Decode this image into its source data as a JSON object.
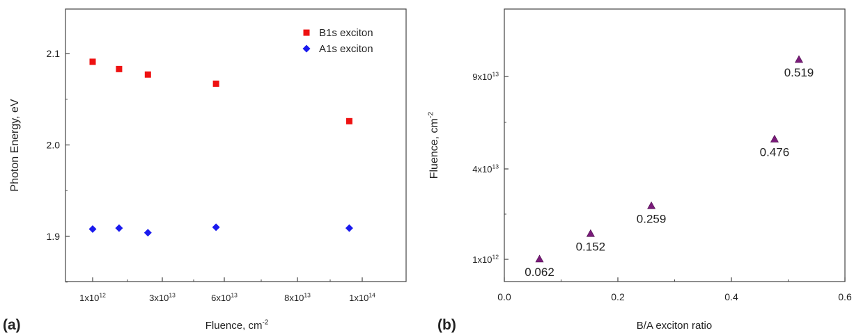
{
  "colors": {
    "b1s": "#ee1111",
    "a1s": "#1a1aee",
    "ratio": "#7a1a7a",
    "axis": "#444444",
    "text": "#222222"
  },
  "chart_data": [
    {
      "panel_label": "(a)",
      "type": "scatter",
      "xlabel": "Fluence, cm",
      "xlabel_sup": "-2",
      "ylabel": "Photon Energy, eV",
      "ylim": [
        1.84,
        2.15
      ],
      "grid": false,
      "legend_position": "top-right",
      "x_ticks": [
        {
          "base": "1x10",
          "exp": "12"
        },
        {
          "base": "3x10",
          "exp": "13"
        },
        {
          "base": "6x10",
          "exp": "13"
        },
        {
          "base": "8x10",
          "exp": "13"
        },
        {
          "base": "1x10",
          "exp": "14"
        }
      ],
      "y_ticks": [
        "1.9",
        "2.0",
        "2.1"
      ],
      "series": [
        {
          "name": "B1s exciton",
          "marker": "square",
          "color": "#ee1111",
          "points": [
            {
              "x": "1x10^12",
              "y": 2.091
            },
            {
              "x": "1.2x10^13",
              "y": 2.083
            },
            {
              "x": "2.4x10^13",
              "y": 2.077
            },
            {
              "x": "5.6x10^13",
              "y": 2.067
            },
            {
              "x": "9.6x10^13",
              "y": 2.026
            }
          ]
        },
        {
          "name": "A1s exciton",
          "marker": "diamond",
          "color": "#1a1aee",
          "points": [
            {
              "x": "1x10^12",
              "y": 1.908
            },
            {
              "x": "1.2x10^13",
              "y": 1.909
            },
            {
              "x": "2.4x10^13",
              "y": 1.904
            },
            {
              "x": "5.6x10^13",
              "y": 1.91
            },
            {
              "x": "9.6x10^13",
              "y": 1.909
            }
          ]
        }
      ]
    },
    {
      "panel_label": "(b)",
      "type": "scatter",
      "xlabel": "B/A exciton ratio",
      "ylabel": "Fluence, cm",
      "ylabel_sup": "-2",
      "xlim": [
        0.0,
        0.6
      ],
      "grid": false,
      "x_ticks": [
        "0.0",
        "0.2",
        "0.4",
        "0.6"
      ],
      "y_ticks": [
        {
          "base": "1x10",
          "exp": "12"
        },
        {
          "base": "4x10",
          "exp": "13"
        },
        {
          "base": "9x10",
          "exp": "13"
        }
      ],
      "series": [
        {
          "marker": "triangle",
          "color": "#7a1a7a",
          "points": [
            {
              "x": 0.062,
              "y": "1x10^12",
              "label": "0.062"
            },
            {
              "x": 0.152,
              "y": "1.2x10^13",
              "label": "0.152"
            },
            {
              "x": 0.259,
              "y": "2.4x10^13",
              "label": "0.259"
            },
            {
              "x": 0.476,
              "y": "5.6x10^13",
              "label": "0.476"
            },
            {
              "x": 0.519,
              "y": "9.6x10^13",
              "label": "0.519"
            }
          ]
        }
      ]
    }
  ]
}
